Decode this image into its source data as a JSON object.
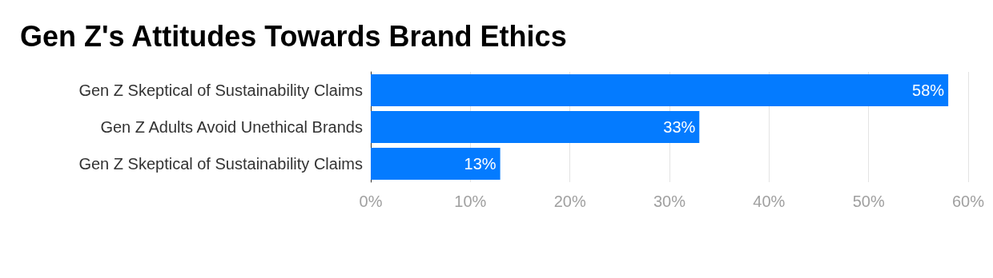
{
  "chart_data": {
    "type": "bar",
    "orientation": "horizontal",
    "title": "Gen Z's Attitudes Towards Brand Ethics",
    "categories": [
      "Gen Z Skeptical of Sustainability Claims",
      "Gen Z Adults Avoid Unethical Brands",
      "Gen Z Skeptical of Sustainability Claims"
    ],
    "values": [
      58,
      33,
      13
    ],
    "color": "#047bff",
    "value_labels": [
      "58%",
      "33%",
      "13%"
    ],
    "xlim": [
      0,
      60
    ],
    "xticks": [
      {
        "value": 0,
        "label": "0%"
      },
      {
        "value": 10,
        "label": "10%"
      },
      {
        "value": 20,
        "label": "20%"
      },
      {
        "value": 30,
        "label": "30%"
      },
      {
        "value": 40,
        "label": "40%"
      },
      {
        "value": 50,
        "label": "50%"
      },
      {
        "value": 60,
        "label": "60%"
      }
    ],
    "grid": "x"
  }
}
